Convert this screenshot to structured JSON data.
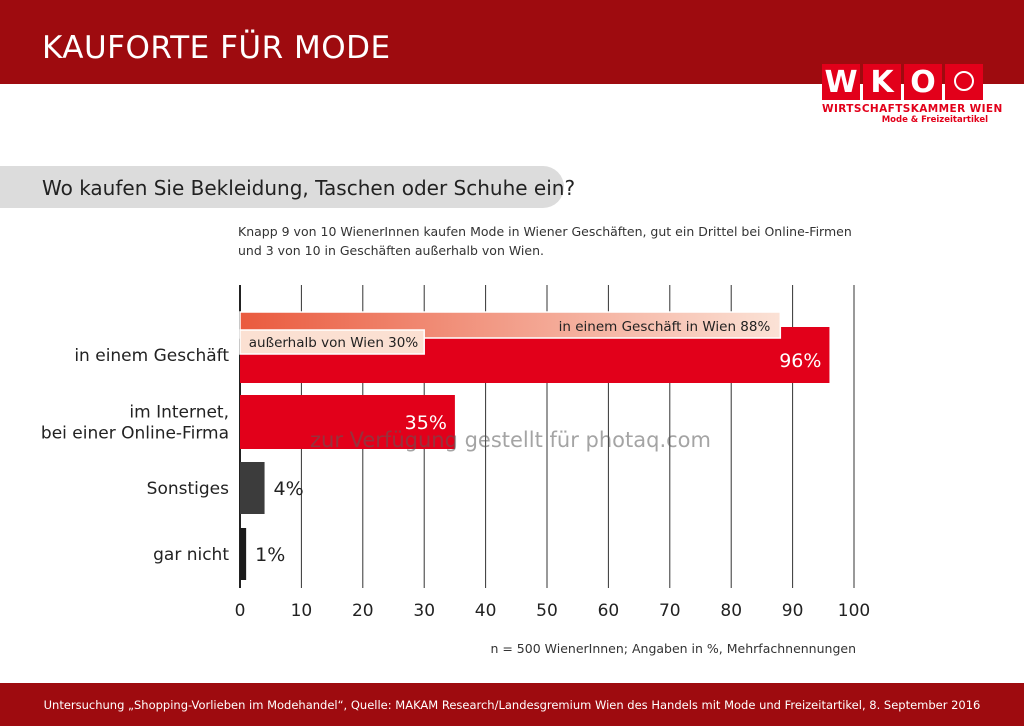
{
  "header": {
    "title": "KAUFORTE FÜR MODE"
  },
  "logo": {
    "letters": [
      "W",
      "K",
      "O"
    ],
    "line1": "WIRTSCHAFTSKAMMER WIEN",
    "line2": "Mode & Freizeitartikel"
  },
  "question": "Wo kaufen Sie Bekleidung, Taschen oder Schuhe ein?",
  "subtitle_line1": "Knapp 9 von 10 WienerInnen kaufen Mode in Wiener Geschäften, gut ein Drittel bei Online-Firmen",
  "subtitle_line2": "und 3 von 10 in Geschäften außerhalb von Wien.",
  "chart_data": {
    "type": "bar",
    "orientation": "horizontal",
    "categories": [
      "in einem Geschäft",
      "im Internet,\nbei einer Online-Firma",
      "Sonstiges",
      "gar nicht"
    ],
    "values": [
      96,
      35,
      4,
      1
    ],
    "value_labels": [
      "96%",
      "35%",
      "4%",
      "1%"
    ],
    "bar_colors": [
      "#e2001a",
      "#e2001a",
      "#3c3c3c",
      "#1a1a1a"
    ],
    "sub_bars": [
      {
        "category": "in einem Geschäft",
        "label": "in einem Geschäft in Wien",
        "value": 88,
        "value_label": "88%"
      },
      {
        "category": "in einem Geschäft",
        "label": "außerhalb von Wien",
        "value": 30,
        "value_label": "30%"
      }
    ],
    "xlim": [
      0,
      100
    ],
    "xticks": [
      0,
      10,
      20,
      30,
      40,
      50,
      60,
      70,
      80,
      90,
      100
    ],
    "grid": true
  },
  "note": "n = 500 WienerInnen; Angaben in %, Mehrfachnennungen",
  "watermark": "zur Verfügung gestellt für photaq.com",
  "footer": "Untersuchung „Shopping-Vorlieben im Modehandel“, Quelle: MAKAM Research/Landesgremium Wien des Handels mit Mode und Freizeitartikel, 8. September 2016"
}
